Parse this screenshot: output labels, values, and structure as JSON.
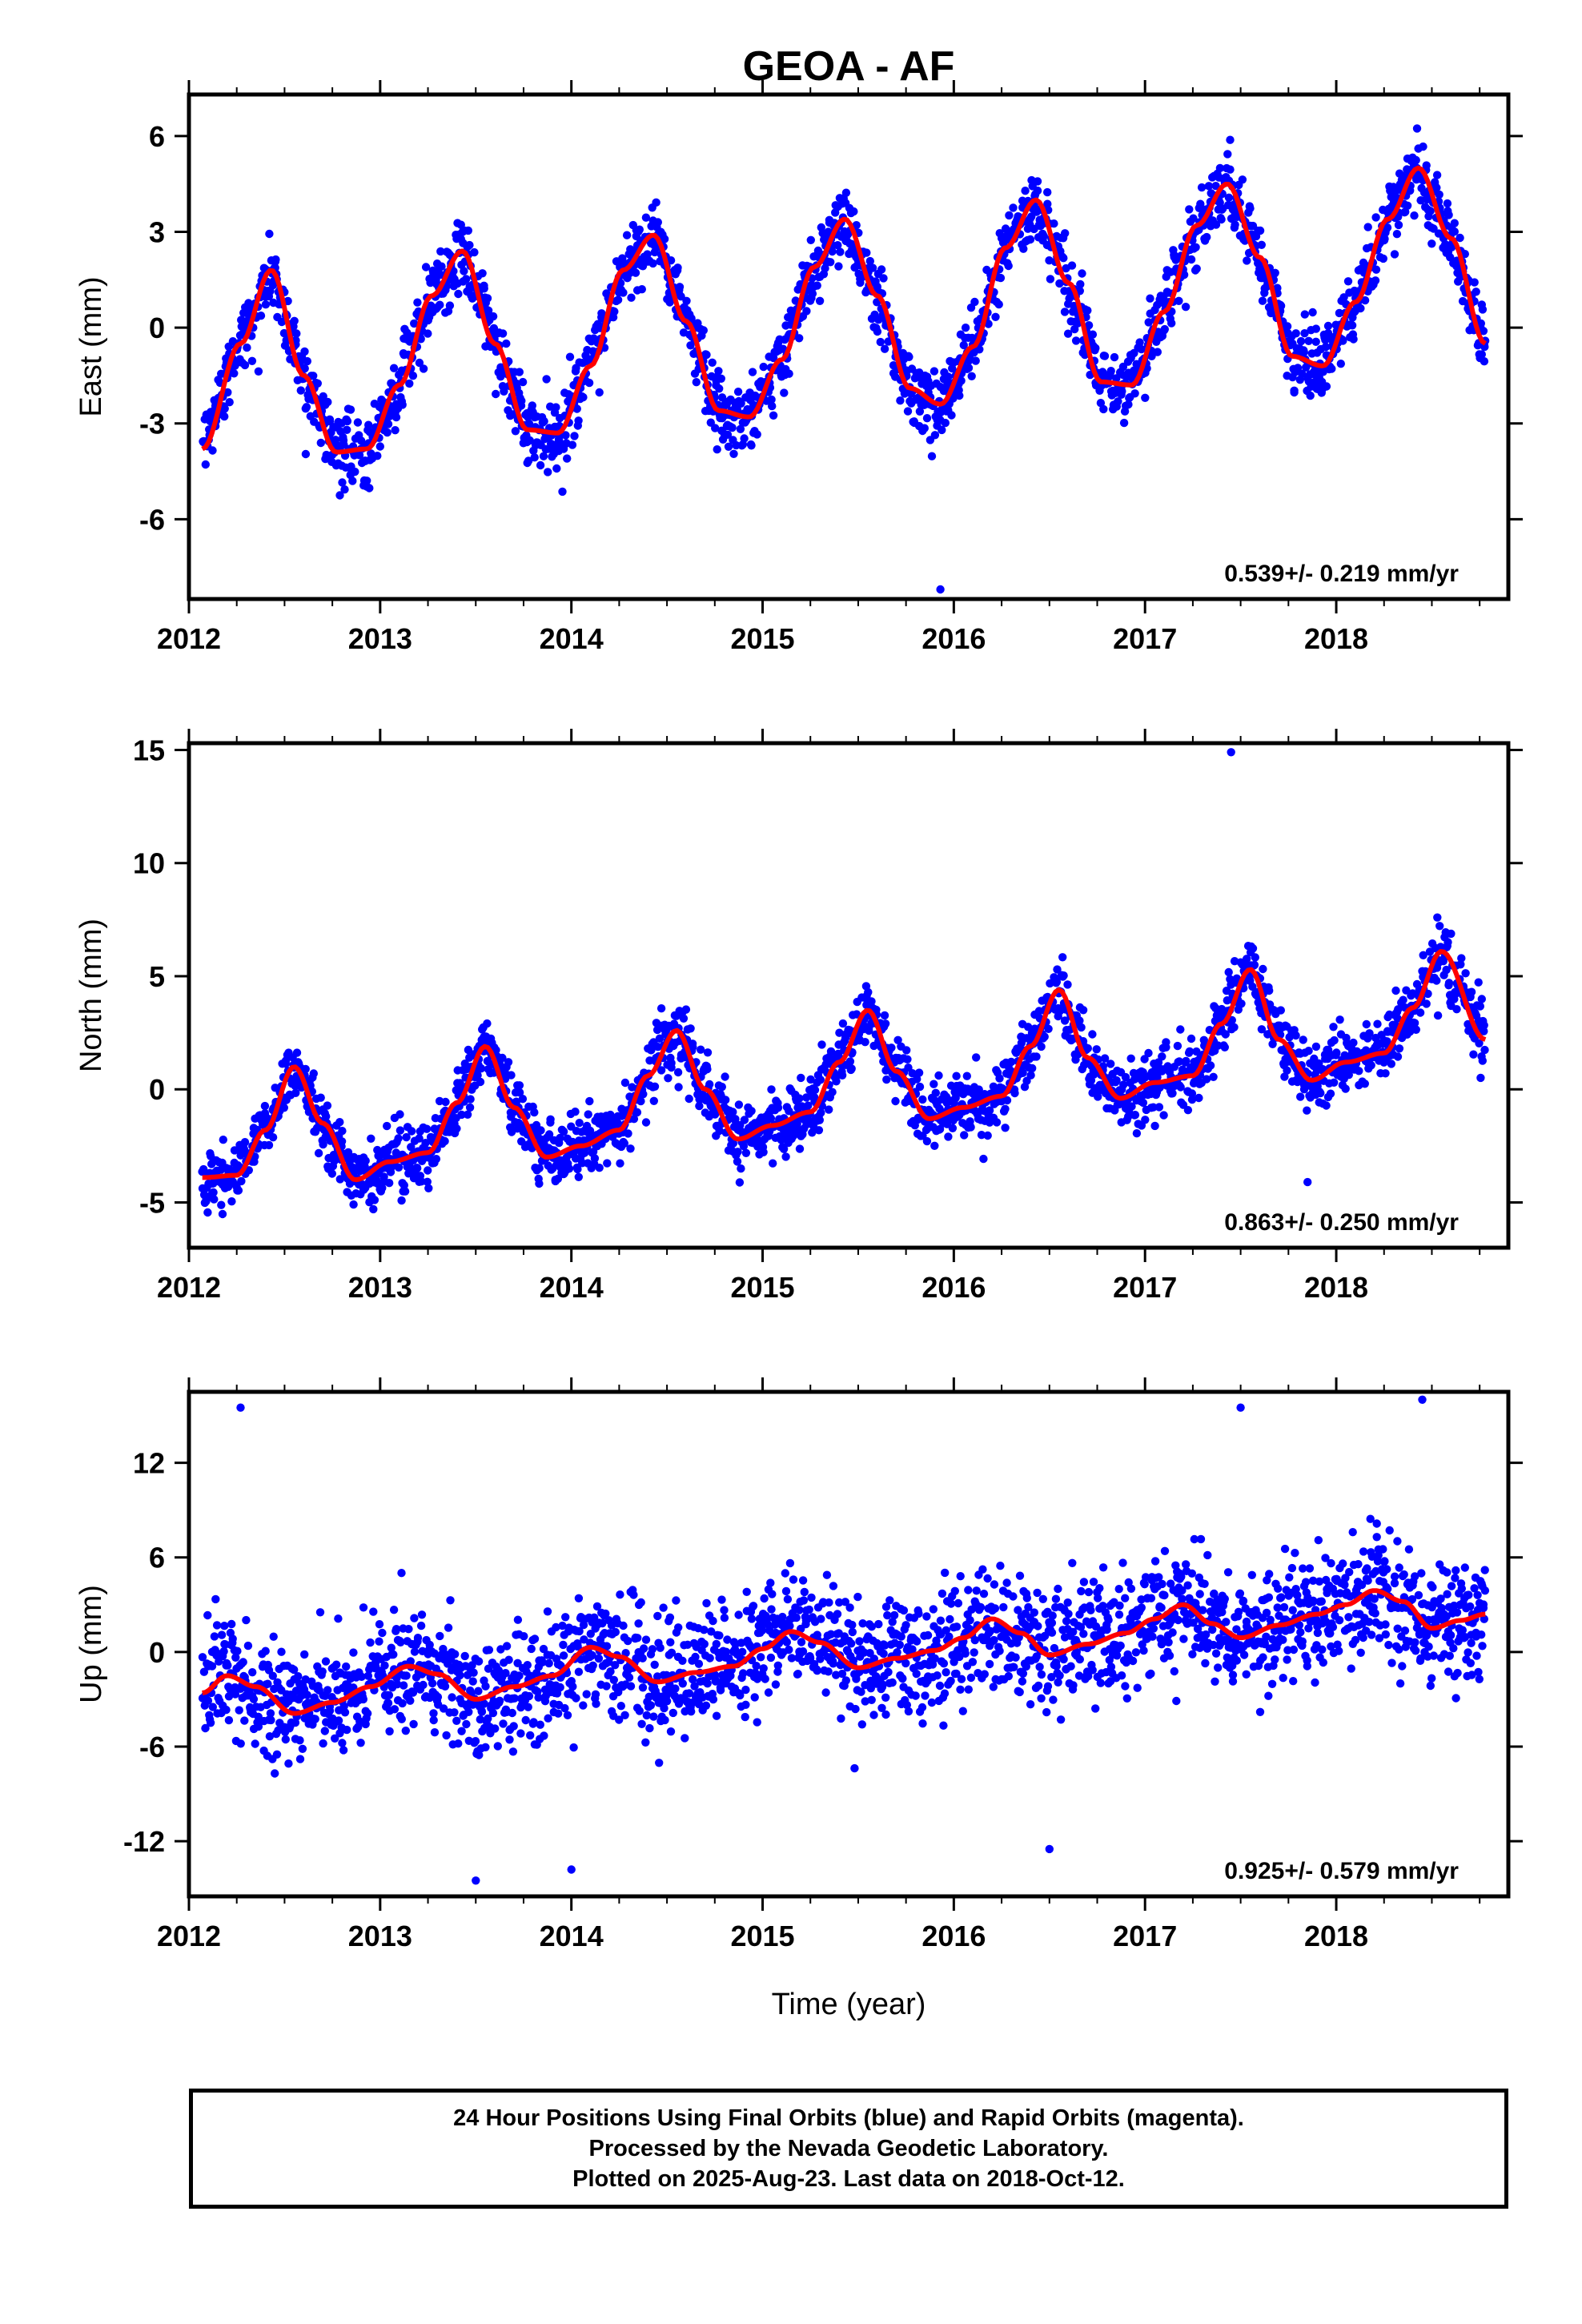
{
  "title": "GEOA - AF",
  "x_axis_label": "Time (year)",
  "footer": {
    "line1": "24 Hour Positions Using Final Orbits (blue) and Rapid Orbits (magenta).",
    "line2": "Processed by the Nevada Geodetic Laboratory.",
    "line3": "Plotted on 2025-Aug-23. Last data on 2018-Oct-12."
  },
  "colors": {
    "points": "#0000ff",
    "fit": "#ff0000",
    "frame": "#000000"
  },
  "chart_data": [
    {
      "type": "scatter",
      "name": "east",
      "ylabel": "East (mm)",
      "rate_text": "0.539+/- 0.219 mm/yr",
      "xlim": [
        2012.0,
        2018.9
      ],
      "ylim": [
        -8.5,
        7.3
      ],
      "xticks": [
        "2012",
        "2013",
        "2014",
        "2015",
        "2016",
        "2017",
        "2018"
      ],
      "yticks": [
        "6",
        "3",
        "0",
        "-3",
        "-6"
      ],
      "ytick_values": [
        6,
        3,
        0,
        -3,
        -6
      ],
      "fit": {
        "x": [
          2012.07,
          2012.27,
          2012.43,
          2012.6,
          2012.77,
          2012.93,
          2013.1,
          2013.27,
          2013.43,
          2013.6,
          2013.77,
          2013.93,
          2014.1,
          2014.27,
          2014.43,
          2014.6,
          2014.77,
          2014.93,
          2015.1,
          2015.27,
          2015.43,
          2015.6,
          2015.77,
          2015.93,
          2016.1,
          2016.27,
          2016.43,
          2016.6,
          2016.77,
          2016.93,
          2017.1,
          2017.27,
          2017.43,
          2017.6,
          2017.77,
          2017.93,
          2018.1,
          2018.27,
          2018.43,
          2018.6,
          2018.78
        ],
        "y": [
          -3.8,
          -0.5,
          1.8,
          -1.5,
          -3.9,
          -3.8,
          -1.8,
          1.0,
          2.4,
          -0.5,
          -3.2,
          -3.3,
          -1.2,
          1.8,
          2.9,
          0.2,
          -2.6,
          -2.8,
          -1.0,
          1.9,
          3.4,
          1.0,
          -1.9,
          -2.4,
          -0.6,
          2.5,
          4.0,
          1.4,
          -1.7,
          -1.8,
          0.5,
          3.2,
          4.5,
          2.2,
          -0.9,
          -1.2,
          0.8,
          3.4,
          5.0,
          2.8,
          -0.5
        ]
      },
      "scatter": {
        "amp": 3.0,
        "trend": 0.539,
        "noise": 1.0,
        "offset": -0.9
      },
      "outliers": [
        [
          2015.93,
          -8.2
        ]
      ]
    },
    {
      "type": "scatter",
      "name": "north",
      "ylabel": "North (mm)",
      "rate_text": "0.863+/- 0.250 mm/yr",
      "xlim": [
        2012.0,
        2018.9
      ],
      "ylim": [
        -7.0,
        15.3
      ],
      "xticks": [
        "2012",
        "2013",
        "2014",
        "2015",
        "2016",
        "2017",
        "2018"
      ],
      "yticks": [
        "15",
        "10",
        "5",
        "0",
        "-5"
      ],
      "ytick_values": [
        15,
        10,
        5,
        0,
        -5
      ],
      "fit": {
        "x": [
          2012.07,
          2012.25,
          2012.4,
          2012.55,
          2012.7,
          2012.87,
          2013.05,
          2013.25,
          2013.4,
          2013.55,
          2013.7,
          2013.87,
          2014.05,
          2014.25,
          2014.4,
          2014.55,
          2014.7,
          2014.87,
          2015.05,
          2015.25,
          2015.4,
          2015.55,
          2015.7,
          2015.87,
          2016.05,
          2016.25,
          2016.4,
          2016.55,
          2016.7,
          2016.87,
          2017.05,
          2017.25,
          2017.4,
          2017.55,
          2017.7,
          2017.87,
          2018.05,
          2018.25,
          2018.4,
          2018.55,
          2018.78
        ],
        "y": [
          -3.9,
          -3.8,
          -1.8,
          1.0,
          -1.5,
          -4.0,
          -3.2,
          -2.8,
          -0.6,
          1.9,
          -0.8,
          -3.0,
          -2.5,
          -1.8,
          0.6,
          2.6,
          0.0,
          -2.2,
          -1.6,
          -1.0,
          1.2,
          3.5,
          0.8,
          -1.3,
          -0.8,
          -0.3,
          1.9,
          4.4,
          1.4,
          -0.4,
          0.3,
          0.6,
          2.9,
          5.3,
          2.2,
          0.4,
          1.2,
          1.6,
          3.6,
          6.1,
          2.2
        ]
      },
      "scatter": {
        "amp": 2.6,
        "trend": 0.863,
        "noise": 1.3,
        "offset": -2.7
      },
      "outliers": [
        [
          2017.45,
          14.9
        ],
        [
          2017.85,
          -4.1
        ]
      ]
    },
    {
      "type": "scatter",
      "name": "up",
      "ylabel": "Up (mm)",
      "rate_text": "0.925+/- 0.579 mm/yr",
      "xlim": [
        2012.0,
        2018.9
      ],
      "ylim": [
        -15.5,
        16.5
      ],
      "xticks": [
        "2012",
        "2013",
        "2014",
        "2015",
        "2016",
        "2017",
        "2018"
      ],
      "yticks": [
        "12",
        "6",
        "0",
        "-6",
        "-12"
      ],
      "ytick_values": [
        12,
        6,
        0,
        -6,
        -12
      ],
      "fit": {
        "x": [
          2012.07,
          2012.2,
          2012.35,
          2012.55,
          2012.75,
          2012.95,
          2013.15,
          2013.3,
          2013.5,
          2013.7,
          2013.9,
          2014.1,
          2014.25,
          2014.45,
          2014.65,
          2014.85,
          2015.0,
          2015.15,
          2015.3,
          2015.5,
          2015.7,
          2015.9,
          2016.05,
          2016.2,
          2016.35,
          2016.5,
          2016.7,
          2016.9,
          2017.05,
          2017.2,
          2017.35,
          2017.5,
          2017.7,
          2017.9,
          2018.05,
          2018.2,
          2018.35,
          2018.5,
          2018.65,
          2018.78
        ],
        "y": [
          -2.6,
          -1.5,
          -2.2,
          -3.9,
          -3.2,
          -2.2,
          -0.9,
          -1.4,
          -3.0,
          -2.2,
          -1.5,
          0.3,
          -0.3,
          -1.9,
          -1.3,
          -0.9,
          0.2,
          1.3,
          0.6,
          -1.0,
          -0.4,
          0.1,
          0.9,
          2.1,
          1.2,
          -0.2,
          0.5,
          1.2,
          2.1,
          3.0,
          1.8,
          0.9,
          1.7,
          2.4,
          3.0,
          3.9,
          3.2,
          1.5,
          2.0,
          2.4
        ]
      },
      "scatter": {
        "amp": 1.2,
        "trend": 0.925,
        "noise": 3.4,
        "offset": -2.6
      },
      "outliers": [
        [
          2012.27,
          15.5
        ],
        [
          2016.5,
          -12.5
        ],
        [
          2018.45,
          16.0
        ],
        [
          2017.5,
          15.5
        ],
        [
          2013.5,
          -14.5
        ],
        [
          2014.0,
          -13.8
        ]
      ]
    }
  ]
}
